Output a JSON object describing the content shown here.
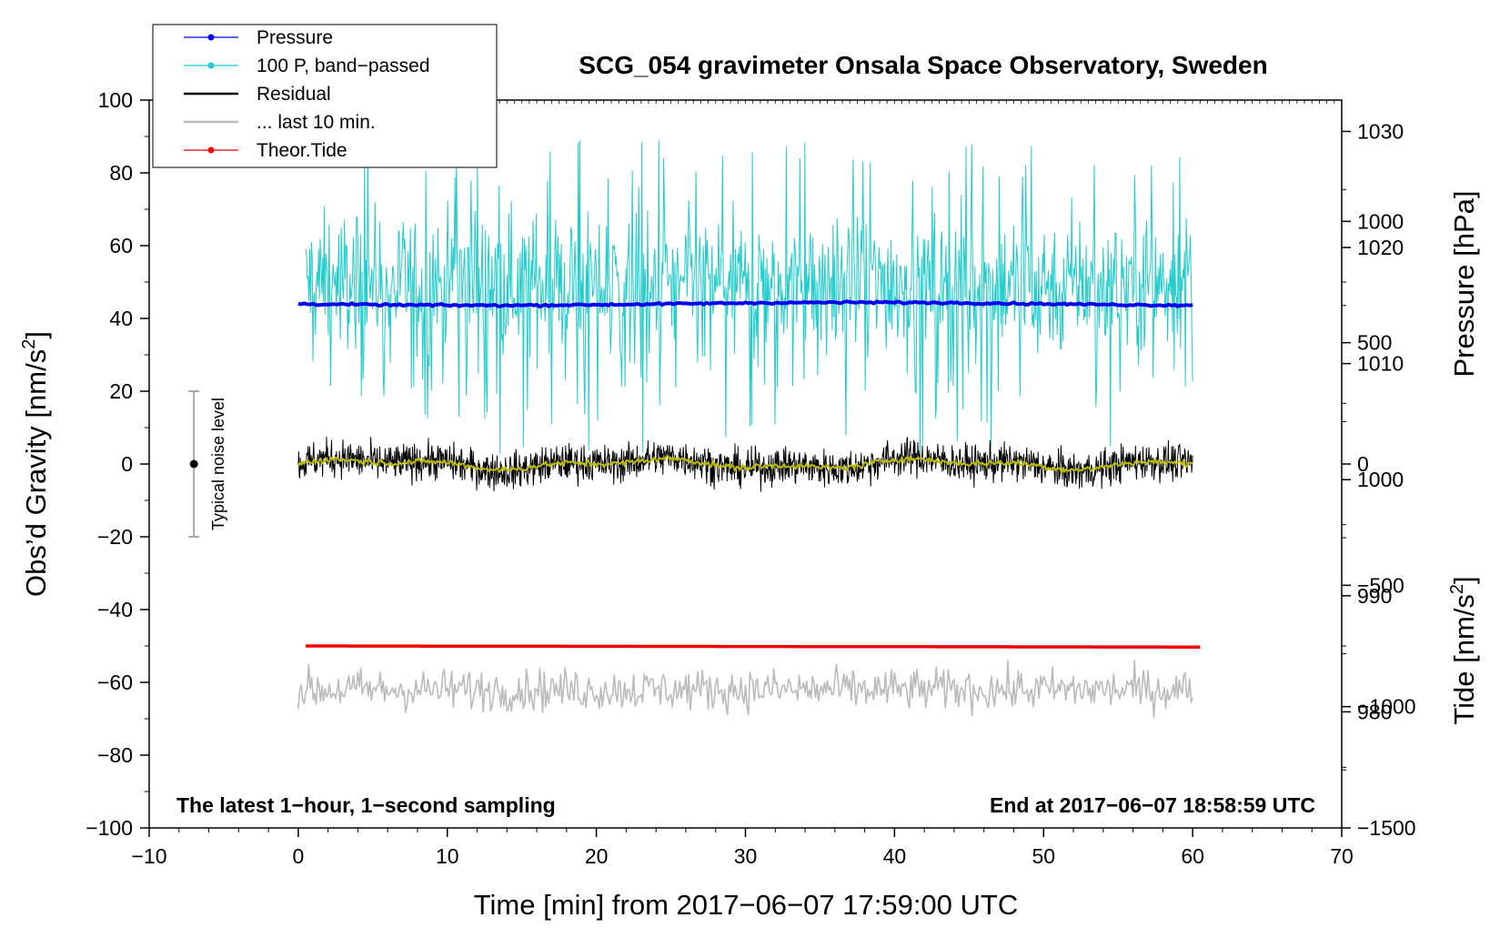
{
  "chart_data": {
    "type": "line",
    "title": "SCG_054 gravimeter Onsala Space Observatory, Sweden",
    "xlabel": "Time [min] from 2017−06−07 17:59:00 UTC",
    "ylabel_left": "Obs’d Gravity [nm/s",
    "ylabel_left_sup": "2",
    "ylabel_left_end": "]",
    "ylabel_right_pressure": "Pressure [hPa]",
    "ylabel_right_tide": "Tide [nm/s",
    "ylabel_right_tide_sup": "2",
    "ylabel_right_tide_end": "]",
    "xlim": [
      -10,
      70
    ],
    "ylim": [
      -100,
      100
    ],
    "pressure_lim": [
      970,
      1032.7
    ],
    "tide_lim": [
      -1500,
      1500
    ],
    "x_ticks": [
      -10,
      0,
      10,
      20,
      30,
      40,
      50,
      60,
      70
    ],
    "x_tick_labels": [
      "−10",
      "0",
      "10",
      "20",
      "30",
      "40",
      "50",
      "60",
      "70"
    ],
    "y_ticks": [
      -100,
      -80,
      -60,
      -40,
      -20,
      0,
      20,
      40,
      60,
      80,
      100
    ],
    "y_tick_labels": [
      "−100",
      "−80",
      "−60",
      "−40",
      "−20",
      "0",
      "20",
      "40",
      "60",
      "80",
      "100"
    ],
    "pressure_ticks": [
      980,
      990,
      1000,
      1010,
      1020,
      1030
    ],
    "pressure_tick_labels": [
      "980",
      "990",
      "1000",
      "1010",
      "1020",
      "1030"
    ],
    "tide_ticks": [
      -1500,
      -1000,
      -500,
      0,
      500,
      1000
    ],
    "tide_tick_labels": [
      "−1500",
      "−1000",
      "−500",
      "0",
      "500",
      "1000"
    ],
    "annotations": {
      "left": "The latest 1−hour, 1−second sampling",
      "right": "End at 2017−06−07 18:58:59 UTC"
    },
    "noise_bar": {
      "x": -7,
      "center": 0,
      "half_range": 20,
      "label": "Typical noise level"
    },
    "legend": [
      {
        "label": "Pressure",
        "color": "#0000ee",
        "style": "dot-line"
      },
      {
        "label": "100 P, band−passed",
        "color": "#22cccc",
        "style": "dot-line"
      },
      {
        "label": "Residual",
        "color": "#000000",
        "style": "line"
      },
      {
        "label": "... last 10 min.",
        "color": "#bbbbbb",
        "style": "line"
      },
      {
        "label": "Theor.Tide",
        "color": "#ee0000",
        "style": "dot-line"
      }
    ],
    "series": [
      {
        "name": "Pressure",
        "axis": "gravity",
        "color": "#0000ee",
        "x_range": [
          0,
          60
        ],
        "level": 44,
        "noise": 0.5
      },
      {
        "name": "100 P, band−passed",
        "axis": "gravity",
        "color": "#22cccc",
        "x_range": [
          0.5,
          60
        ],
        "center": 50,
        "spread": 16,
        "min": 2,
        "max": 89
      },
      {
        "name": "Residual",
        "axis": "gravity",
        "color": "#000000",
        "x_range": [
          0,
          60
        ],
        "center": 0,
        "spread": 3.5,
        "min": -13,
        "max": 11
      },
      {
        "name": "Residual smoothed",
        "axis": "gravity",
        "color": "#bbbb00",
        "x_range": [
          0,
          60
        ],
        "center": 0,
        "spread": 1.2
      },
      {
        "name": "... last 10 min.",
        "axis": "gravity",
        "color": "#bbbbbb",
        "x_range": [
          0,
          60
        ],
        "center": -62,
        "spread": 4,
        "min": -73,
        "max": -51
      },
      {
        "name": "Theor.Tide",
        "axis": "gravity",
        "color": "#ee0000",
        "x_range": [
          0.5,
          60.5
        ],
        "level": -50,
        "end_level": -50.3
      }
    ],
    "colors": {
      "pressure": "#0000ee",
      "bandpassed": "#22cccc",
      "residual": "#000000",
      "smoothed": "#bbbb00",
      "last10": "#bbbbbb",
      "tide": "#ee0000"
    }
  }
}
